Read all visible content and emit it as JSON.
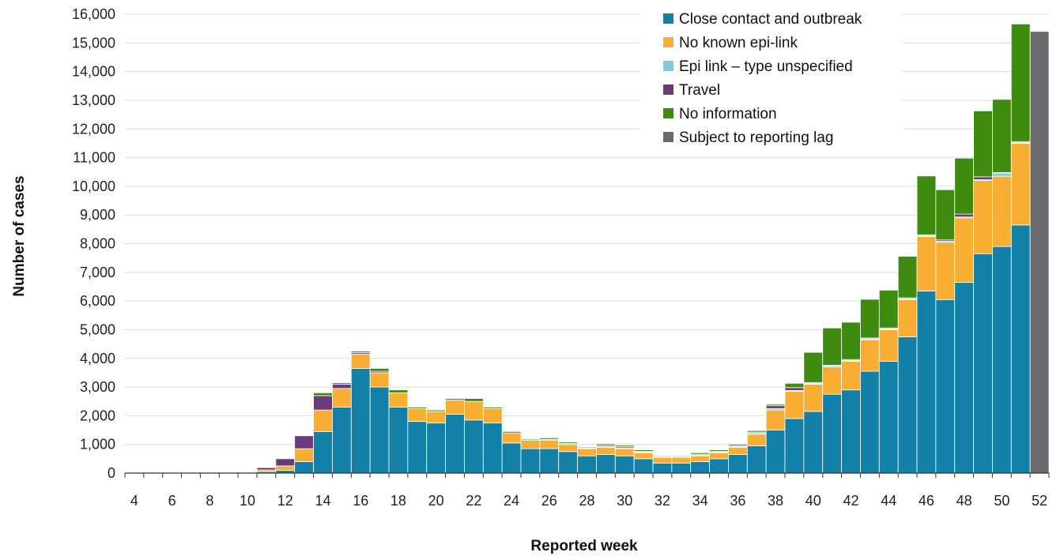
{
  "chart_data": {
    "type": "bar",
    "stacked": true,
    "xlabel": "Reported week",
    "ylabel": "Number of cases",
    "ylim": [
      0,
      16000
    ],
    "yticks": [
      0,
      1000,
      2000,
      3000,
      4000,
      5000,
      6000,
      7000,
      8000,
      9000,
      10000,
      11000,
      12000,
      13000,
      14000,
      15000,
      16000
    ],
    "ytick_labels": [
      "0",
      "1,000",
      "2,000",
      "3,000",
      "4,000",
      "5,000",
      "6,000",
      "7,000",
      "8,000",
      "9,000",
      "10,000",
      "11,000",
      "12,000",
      "13,000",
      "14,000",
      "15,000",
      "16,000"
    ],
    "categories": [
      4,
      5,
      6,
      7,
      8,
      9,
      10,
      11,
      12,
      13,
      14,
      15,
      16,
      17,
      18,
      19,
      20,
      21,
      22,
      23,
      24,
      25,
      26,
      27,
      28,
      29,
      30,
      31,
      32,
      33,
      34,
      35,
      36,
      37,
      38,
      39,
      40,
      41,
      42,
      43,
      44,
      45,
      46,
      47,
      48,
      49,
      50,
      51,
      52
    ],
    "xtick_labels": [
      "4",
      "6",
      "8",
      "10",
      "12",
      "14",
      "16",
      "18",
      "20",
      "22",
      "24",
      "26",
      "28",
      "30",
      "32",
      "34",
      "36",
      "38",
      "40",
      "42",
      "44",
      "46",
      "48",
      "50",
      "52"
    ],
    "grid": "horizontal",
    "legend_position": "top-right",
    "series": [
      {
        "name": "Close contact and outbreak",
        "color": "#1380A8",
        "values": [
          0,
          0,
          0,
          0,
          0,
          0,
          0,
          50,
          100,
          400,
          1450,
          2300,
          3650,
          3000,
          2300,
          1800,
          1750,
          2050,
          1850,
          1750,
          1050,
          850,
          850,
          750,
          600,
          650,
          600,
          500,
          350,
          350,
          400,
          500,
          650,
          950,
          1500,
          1900,
          2150,
          2750,
          2900,
          3550,
          3900,
          4750,
          6350,
          6050,
          6650,
          7650,
          7900,
          8650,
          0
        ]
      },
      {
        "name": "No known epi-link",
        "color": "#F8AE33",
        "values": [
          20,
          0,
          0,
          0,
          20,
          20,
          30,
          60,
          150,
          450,
          750,
          650,
          500,
          500,
          500,
          450,
          400,
          500,
          650,
          500,
          350,
          300,
          300,
          250,
          250,
          250,
          250,
          200,
          200,
          200,
          200,
          200,
          250,
          400,
          700,
          950,
          950,
          950,
          1000,
          1100,
          1100,
          1300,
          1900,
          2000,
          2250,
          2550,
          2450,
          2850,
          0
        ]
      },
      {
        "name": "Epi link – type unspecified",
        "color": "#7DCBDA",
        "values": [
          0,
          0,
          0,
          0,
          0,
          0,
          0,
          0,
          0,
          0,
          0,
          0,
          0,
          0,
          0,
          0,
          0,
          0,
          0,
          0,
          0,
          50,
          30,
          30,
          20,
          30,
          30,
          30,
          20,
          30,
          30,
          30,
          30,
          50,
          50,
          30,
          30,
          30,
          30,
          30,
          30,
          30,
          30,
          30,
          30,
          30,
          100,
          30,
          0
        ]
      },
      {
        "name": "Travel",
        "color": "#6A3B7A",
        "values": [
          0,
          0,
          0,
          0,
          0,
          0,
          20,
          80,
          250,
          450,
          500,
          150,
          50,
          50,
          0,
          0,
          0,
          0,
          0,
          0,
          0,
          0,
          0,
          0,
          30,
          40,
          40,
          30,
          30,
          30,
          30,
          30,
          30,
          30,
          100,
          100,
          30,
          30,
          30,
          30,
          30,
          30,
          30,
          50,
          100,
          100,
          30,
          30,
          0
        ]
      },
      {
        "name": "No information",
        "color": "#3E8B10",
        "values": [
          0,
          0,
          0,
          0,
          0,
          0,
          0,
          0,
          0,
          0,
          100,
          50,
          50,
          100,
          100,
          50,
          50,
          50,
          100,
          50,
          50,
          0,
          50,
          50,
          0,
          50,
          50,
          50,
          20,
          20,
          50,
          50,
          50,
          50,
          50,
          150,
          1050,
          1300,
          1300,
          1350,
          1320,
          1450,
          2050,
          1750,
          1950,
          2300,
          2550,
          4100,
          0
        ]
      },
      {
        "name": "Subject to reporting lag",
        "color": "#6B6B6E",
        "values": [
          0,
          0,
          0,
          0,
          0,
          0,
          0,
          0,
          0,
          0,
          0,
          0,
          0,
          0,
          0,
          0,
          0,
          0,
          0,
          0,
          0,
          0,
          0,
          0,
          0,
          0,
          0,
          0,
          0,
          0,
          0,
          0,
          0,
          0,
          0,
          0,
          0,
          0,
          0,
          0,
          0,
          0,
          0,
          0,
          0,
          0,
          0,
          0,
          15400
        ]
      }
    ]
  }
}
